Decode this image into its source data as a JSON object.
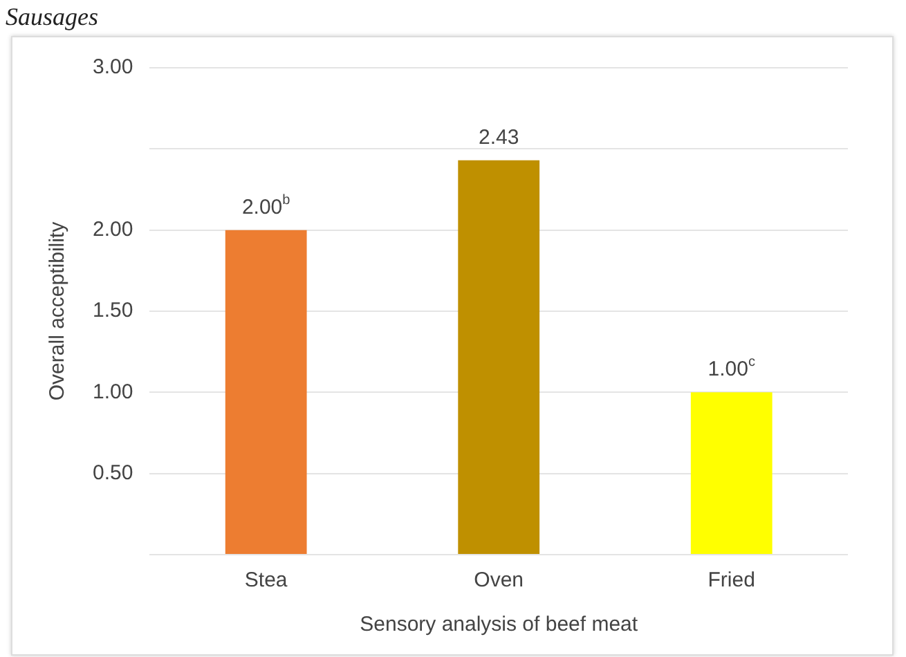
{
  "chart_data": {
    "type": "bar",
    "title": "Sausages",
    "xlabel": "Sensory analysis of beef meat",
    "ylabel": "Overall acceptibility",
    "categories": [
      "Stea",
      "Oven",
      "Fried"
    ],
    "values": [
      2.0,
      2.43,
      1.0
    ],
    "colors": [
      "#ed7d31",
      "#bf9000",
      "#ffff00"
    ],
    "value_labels": [
      "2.00$^{b}$",
      "2.43",
      "1.00$^{c}$"
    ],
    "ylim": [
      0,
      3
    ],
    "yticks": [
      {
        "value": 0,
        "label": null
      },
      {
        "value": 0.5,
        "label": "0.50"
      },
      {
        "value": 1,
        "label": "1.00"
      },
      {
        "value": 1.5,
        "label": "1.50"
      },
      {
        "value": 2,
        "label": "2.00"
      },
      {
        "value": 2.5,
        "label": null
      },
      {
        "value": 3,
        "label": "3.00"
      }
    ],
    "grid": "y",
    "legend": false
  }
}
